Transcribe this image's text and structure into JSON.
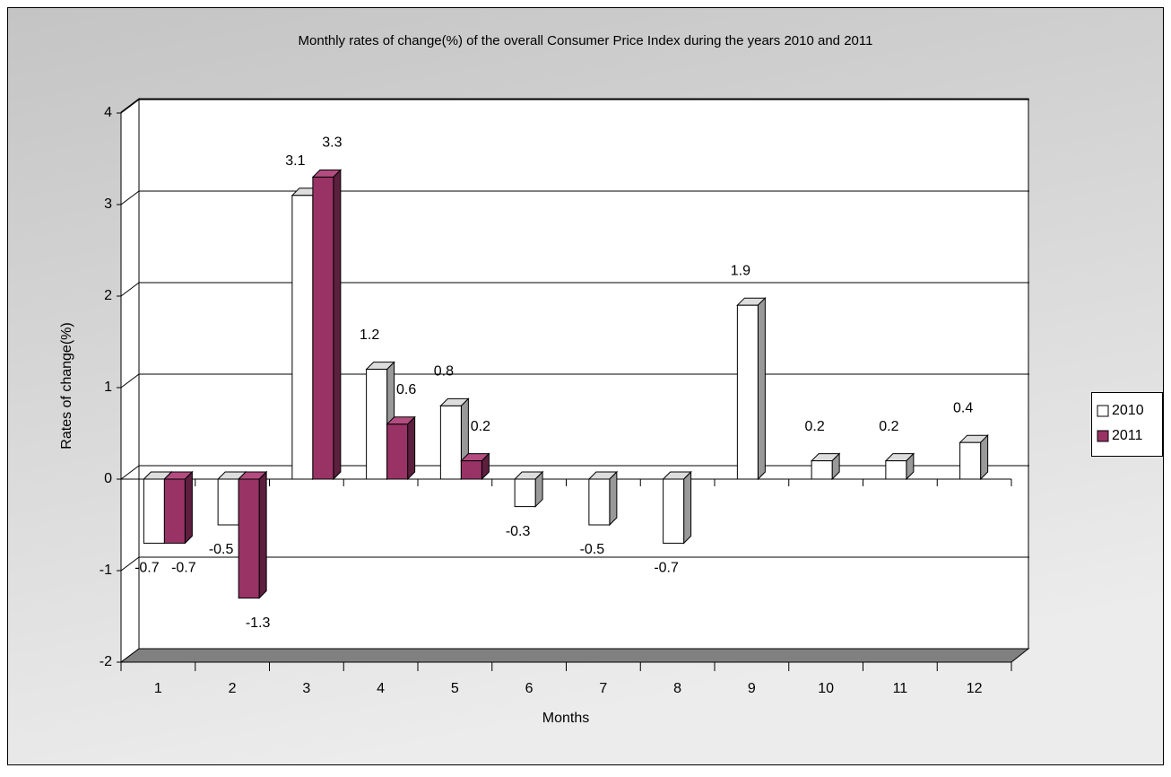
{
  "chart_data": {
    "type": "bar",
    "title": "Monthly rates of change(%) of the overall Consumer Price Index during the years 2010 and 2011",
    "x_label": "Months",
    "y_label": "Rates of change(%)",
    "categories": [
      "1",
      "2",
      "3",
      "4",
      "5",
      "6",
      "7",
      "8",
      "9",
      "10",
      "11",
      "12"
    ],
    "series": [
      {
        "name": "2010",
        "color": "#ffffff",
        "values": [
          -0.7,
          -0.5,
          3.1,
          1.2,
          0.8,
          -0.3,
          -0.5,
          -0.7,
          1.9,
          0.2,
          0.2,
          0.4
        ]
      },
      {
        "name": "2011",
        "color": "#993366",
        "values": [
          -0.7,
          -1.3,
          3.3,
          0.6,
          0.2,
          null,
          null,
          null,
          null,
          null,
          null,
          null
        ]
      }
    ],
    "ylim": [
      -2,
      4
    ],
    "yticks": [
      -2,
      -1,
      0,
      1,
      2,
      3,
      4
    ],
    "grid": true,
    "legend": "right"
  }
}
